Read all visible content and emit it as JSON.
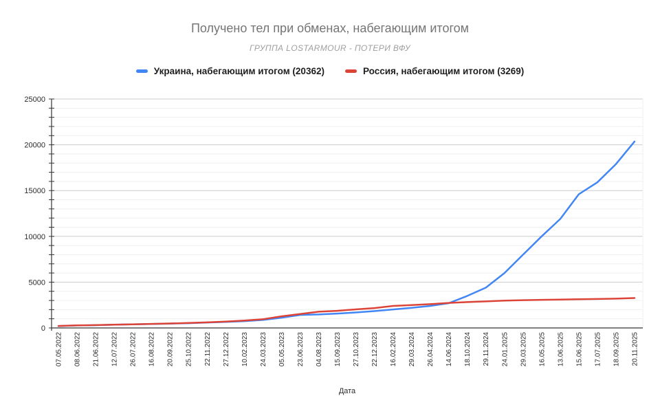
{
  "header": {
    "title": "Получено тел при обменах, набегающим итогом",
    "subtitle": "ГРУППА LOSTARMOUR - ПОТЕРИ ВФУ"
  },
  "chart_data": {
    "type": "line",
    "title": "Получено тел при обменах, набегающим итогом",
    "subtitle": "ГРУППА LOSTARMOUR - ПОТЕРИ ВФУ",
    "xlabel": "Дата",
    "ylabel": "",
    "ylim": [
      0,
      25000
    ],
    "y_major_step": 5000,
    "y_minor_step": 1000,
    "y_tick_labels": [
      "0",
      "5000",
      "10000",
      "15000",
      "20000",
      "25000"
    ],
    "grid": true,
    "legend_position": "top",
    "categories": [
      "07.05.2022",
      "08.06.2022",
      "21.06.2022",
      "12.07.2022",
      "26.07.2022",
      "16.08.2022",
      "20.09.2022",
      "25.10.2022",
      "22.11.2022",
      "27.12.2022",
      "10.02.2023",
      "24.03.2023",
      "05.05.2023",
      "23.06.2023",
      "04.08.2023",
      "15.09.2023",
      "27.10.2023",
      "22.12.2023",
      "16.02.2024",
      "29.03.2024",
      "26.04.2024",
      "14.06.2024",
      "18.10.2024",
      "29.11.2024",
      "24.01.2025",
      "29.03.2025",
      "16.05.2025",
      "13.06.2025",
      "15.06.2025",
      "17.07.2025",
      "18.09.2025",
      "20.11.2025"
    ],
    "series": [
      {
        "key": "ukraine",
        "name": "Украина, набегающим итогом (20362)",
        "color": "#4285f4",
        "final_value": 20362,
        "values": [
          200,
          270,
          300,
          350,
          390,
          430,
          470,
          520,
          590,
          660,
          740,
          870,
          1120,
          1420,
          1470,
          1570,
          1690,
          1840,
          2020,
          2190,
          2400,
          2700,
          3500,
          4400,
          6000,
          8000,
          10000,
          11900,
          14600,
          15900,
          17900,
          20362
        ]
      },
      {
        "key": "russia",
        "name": "Россия, набегающим итогом (3269)",
        "color": "#db4437",
        "final_value": 3269,
        "values": [
          220,
          280,
          310,
          360,
          400,
          440,
          490,
          540,
          610,
          690,
          800,
          950,
          1270,
          1520,
          1770,
          1870,
          2030,
          2170,
          2400,
          2490,
          2600,
          2730,
          2820,
          2900,
          2990,
          3030,
          3070,
          3100,
          3140,
          3160,
          3200,
          3269
        ]
      }
    ]
  },
  "colors": {
    "title": "#757575",
    "subtitle": "#9e9e9e",
    "axis_labels": "#2b2b2b",
    "axis_line": "#333333",
    "major_grid": "#cccccc",
    "minor_grid": "#efefef",
    "background": "#ffffff"
  }
}
